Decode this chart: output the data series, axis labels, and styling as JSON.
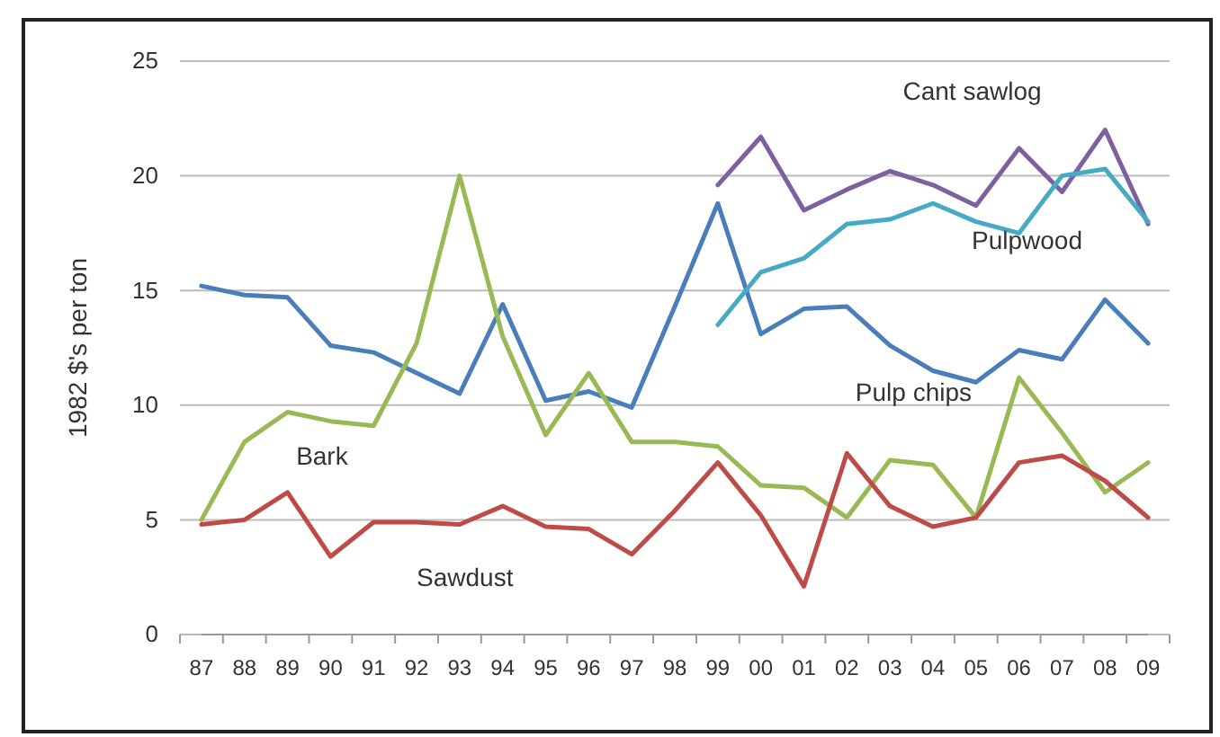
{
  "chart_data": {
    "type": "line",
    "ylabel": "1982 $'s per ton",
    "categories": [
      "87",
      "88",
      "89",
      "90",
      "91",
      "92",
      "93",
      "94",
      "95",
      "96",
      "97",
      "98",
      "99",
      "00",
      "01",
      "02",
      "03",
      "04",
      "05",
      "06",
      "07",
      "08",
      "09"
    ],
    "series": [
      {
        "name": "Pulp chips",
        "color": "#4a7ebb",
        "values": [
          15.2,
          14.8,
          14.7,
          12.6,
          12.3,
          11.4,
          10.5,
          14.4,
          10.2,
          10.6,
          9.9,
          14.3,
          18.8,
          13.1,
          14.2,
          14.3,
          12.6,
          11.5,
          11.0,
          12.4,
          12.0,
          14.6,
          12.7
        ]
      },
      {
        "name": "Bark",
        "color": "#98b954",
        "values": [
          5.0,
          8.4,
          9.7,
          9.3,
          9.1,
          12.7,
          20.0,
          13.0,
          8.7,
          11.4,
          8.4,
          8.4,
          8.2,
          6.5,
          6.4,
          5.1,
          7.6,
          7.4,
          5.1,
          11.2,
          8.8,
          6.2,
          7.5
        ]
      },
      {
        "name": "Sawdust",
        "color": "#be4b48",
        "values": [
          4.8,
          5.0,
          6.2,
          3.4,
          4.9,
          4.9,
          4.8,
          5.6,
          4.7,
          4.6,
          3.5,
          5.4,
          7.5,
          5.2,
          2.1,
          7.9,
          5.6,
          4.7,
          5.1,
          7.5,
          7.8,
          6.7,
          5.1
        ]
      },
      {
        "name": "Cant sawlog",
        "color": "#7d60a0",
        "values": [
          null,
          null,
          null,
          null,
          null,
          null,
          null,
          null,
          null,
          null,
          null,
          null,
          19.6,
          21.7,
          18.5,
          19.4,
          20.2,
          19.6,
          18.7,
          21.2,
          19.3,
          22.0,
          17.9
        ]
      },
      {
        "name": "Pulpwood",
        "color": "#46aac5",
        "values": [
          null,
          null,
          null,
          null,
          null,
          null,
          null,
          null,
          null,
          null,
          null,
          null,
          13.5,
          15.8,
          16.4,
          17.9,
          18.1,
          18.8,
          18.0,
          17.5,
          20.0,
          20.3,
          18.0
        ]
      }
    ],
    "ylim": [
      0,
      25
    ],
    "yticks": [
      0,
      5,
      10,
      15,
      20,
      25
    ],
    "grid": "y",
    "legend": false,
    "marker": "none",
    "line_style": "solid"
  }
}
